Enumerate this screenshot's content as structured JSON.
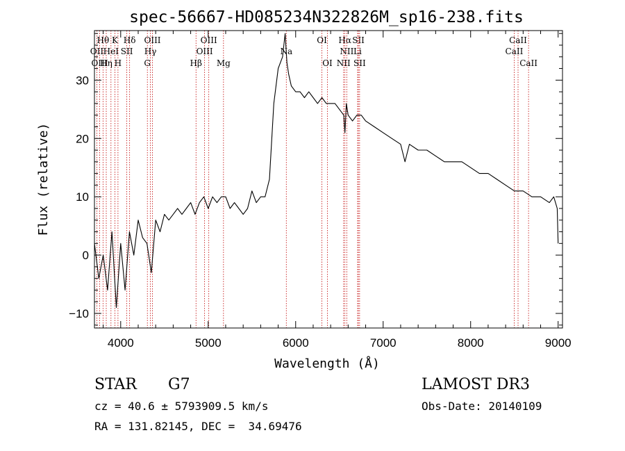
{
  "chart_data": {
    "type": "line",
    "title": "spec-56667-HD085234N322826M_sp16-238.fits",
    "xlabel": "Wavelength (Å)",
    "ylabel": "Flux (relative)",
    "xlim": [
      3700,
      9050
    ],
    "ylim": [
      -12.5,
      38.5
    ],
    "x_ticks": [
      4000,
      5000,
      6000,
      7000,
      8000,
      9000
    ],
    "x_tick_labels": [
      "4000",
      "5000",
      "6000",
      "7000",
      "8000",
      "9000"
    ],
    "y_ticks": [
      -10,
      0,
      10,
      20,
      30
    ],
    "y_tick_labels": [
      "−10",
      "0",
      "10",
      "20",
      "30"
    ],
    "grid": false,
    "series": [
      {
        "name": "spectrum",
        "color": "#000000",
        "x": [
          3700,
          3750,
          3800,
          3850,
          3900,
          3950,
          4000,
          4050,
          4100,
          4150,
          4200,
          4250,
          4300,
          4350,
          4400,
          4450,
          4500,
          4550,
          4600,
          4650,
          4700,
          4750,
          4800,
          4850,
          4900,
          4950,
          5000,
          5050,
          5100,
          5150,
          5200,
          5250,
          5300,
          5350,
          5400,
          5450,
          5500,
          5550,
          5600,
          5650,
          5700,
          5750,
          5800,
          5850,
          5880,
          5900,
          5920,
          5950,
          6000,
          6050,
          6100,
          6150,
          6200,
          6250,
          6300,
          6350,
          6400,
          6450,
          6500,
          6550,
          6563,
          6580,
          6600,
          6650,
          6700,
          6750,
          6800,
          6900,
          7000,
          7100,
          7200,
          7250,
          7300,
          7400,
          7500,
          7600,
          7700,
          7800,
          7900,
          8000,
          8100,
          8200,
          8300,
          8400,
          8500,
          8600,
          8700,
          8800,
          8900,
          8950,
          8990,
          9000
        ],
        "y": [
          2,
          -4,
          0,
          -6,
          4,
          -9,
          2,
          -6,
          4,
          0,
          6,
          3,
          2,
          -3,
          6,
          4,
          7,
          6,
          7,
          8,
          7,
          8,
          9,
          7,
          9,
          10,
          8,
          10,
          9,
          10,
          10,
          8,
          9,
          8,
          7,
          8,
          11,
          9,
          10,
          10,
          13,
          26,
          32,
          34,
          38,
          33,
          31,
          29,
          28,
          28,
          27,
          28,
          27,
          26,
          27,
          26,
          26,
          26,
          25,
          24,
          21,
          26,
          24,
          23,
          24,
          24,
          23,
          22,
          21,
          20,
          19,
          16,
          19,
          18,
          18,
          17,
          16,
          16,
          16,
          15,
          14,
          14,
          13,
          12,
          11,
          11,
          10,
          10,
          9,
          10,
          8,
          2
        ]
      }
    ],
    "line_markers": [
      {
        "label": "Hθ",
        "x": 3798,
        "row": 0
      },
      {
        "label": "K",
        "x": 3934,
        "row": 0
      },
      {
        "label": "Hδ",
        "x": 4102,
        "row": 0
      },
      {
        "label": "OIII",
        "x": 4363,
        "row": 0
      },
      {
        "label": "OIII",
        "x": 5007,
        "row": 0
      },
      {
        "label": "OI",
        "x": 6300,
        "row": 0
      },
      {
        "label": "Hα",
        "x": 6563,
        "row": 0
      },
      {
        "label": "SII",
        "x": 6717,
        "row": 0
      },
      {
        "label": "CaII",
        "x": 8542,
        "row": 0
      },
      {
        "label": "OII",
        "x": 3727,
        "row": 1
      },
      {
        "label": "HeI",
        "x": 3889,
        "row": 1
      },
      {
        "label": "SII",
        "x": 4070,
        "row": 1
      },
      {
        "label": "Hγ",
        "x": 4340,
        "row": 1
      },
      {
        "label": "OIII",
        "x": 4959,
        "row": 1
      },
      {
        "label": "Na",
        "x": 5893,
        "row": 1
      },
      {
        "label": "NII",
        "x": 6584,
        "row": 1
      },
      {
        "label": "Li",
        "x": 6708,
        "row": 1
      },
      {
        "label": "CaII",
        "x": 8498,
        "row": 1
      },
      {
        "label": "OIII",
        "x": 3760,
        "row": 2
      },
      {
        "label": "Hη",
        "x": 3835,
        "row": 2
      },
      {
        "label": "H",
        "x": 3969,
        "row": 2
      },
      {
        "label": "G",
        "x": 4305,
        "row": 2
      },
      {
        "label": "Hβ",
        "x": 4861,
        "row": 2
      },
      {
        "label": "Mg",
        "x": 5175,
        "row": 2
      },
      {
        "label": "OI",
        "x": 6363,
        "row": 2
      },
      {
        "label": "NII",
        "x": 6548,
        "row": 2
      },
      {
        "label": "SII",
        "x": 6731,
        "row": 2
      },
      {
        "label": "CaII",
        "x": 8662,
        "row": 2
      }
    ]
  },
  "info": {
    "object_class": "STAR",
    "subclass": "G7",
    "survey": "LAMOST DR3",
    "redshift": "cz = 40.6 ± 5793909.5 km/s",
    "obs_date": "Obs-Date: 20140109",
    "coords": "RA = 131.82145, DEC =  34.69476"
  }
}
